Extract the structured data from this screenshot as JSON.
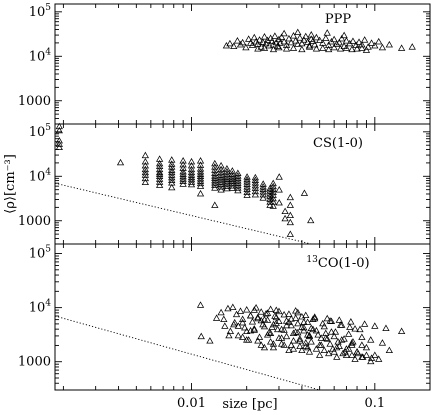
{
  "chart_data": {
    "type": "scatter",
    "xlabel": "size [pc]",
    "ylabel": "⟨ρ⟩[cm⁻³]",
    "x_scale": "log",
    "y_scale": "log",
    "xlim": [
      0.0018,
      0.2
    ],
    "x_tick_labels": [
      {
        "value": 0.01,
        "label": "0.01"
      },
      {
        "value": 0.1,
        "label": "0.1"
      }
    ],
    "marker": "triangle",
    "panels": [
      {
        "label": "PPP",
        "label_sup": "",
        "label_main": "PPP",
        "ylim": [
          300,
          150000
        ],
        "y_tick_labels": [
          {
            "value": 100000,
            "base": "10",
            "exp": "5"
          },
          {
            "value": 10000,
            "base": "10",
            "exp": "4"
          },
          {
            "value": 1000,
            "base": "1000",
            "exp": ""
          }
        ],
        "x": [
          0.0155,
          0.0162,
          0.017,
          0.0178,
          0.0185,
          0.019,
          0.0198,
          0.0205,
          0.021,
          0.0215,
          0.022,
          0.0225,
          0.023,
          0.0235,
          0.024,
          0.0245,
          0.025,
          0.0255,
          0.026,
          0.0265,
          0.027,
          0.0275,
          0.028,
          0.0285,
          0.029,
          0.0295,
          0.03,
          0.0305,
          0.031,
          0.032,
          0.033,
          0.034,
          0.035,
          0.036,
          0.037,
          0.038,
          0.039,
          0.04,
          0.041,
          0.042,
          0.043,
          0.044,
          0.045,
          0.046,
          0.047,
          0.048,
          0.05,
          0.052,
          0.054,
          0.056,
          0.058,
          0.06,
          0.062,
          0.064,
          0.066,
          0.068,
          0.07,
          0.073,
          0.076,
          0.079,
          0.082,
          0.085,
          0.088,
          0.092,
          0.096,
          0.1,
          0.105,
          0.11,
          0.12,
          0.14,
          0.16,
          0.023,
          0.025,
          0.028,
          0.03,
          0.033,
          0.036,
          0.04,
          0.044,
          0.048,
          0.052,
          0.056,
          0.06,
          0.065,
          0.07,
          0.075,
          0.08,
          0.085,
          0.09,
          0.032,
          0.038,
          0.045,
          0.055,
          0.068
        ],
        "y": [
          17000,
          19000,
          16500,
          22000,
          18000,
          20000,
          15500,
          24000,
          19500,
          17500,
          26000,
          21000,
          18500,
          23000,
          16000,
          20500,
          27000,
          19000,
          22500,
          17000,
          25000,
          21500,
          18000,
          28000,
          20000,
          16500,
          23500,
          19500,
          26500,
          21000,
          17500,
          24500,
          20000,
          28500,
          22000,
          18500,
          25500,
          19000,
          23000,
          27500,
          20500,
          17000,
          24000,
          21500,
          18000,
          26000,
          22500,
          19500,
          25000,
          17500,
          21000,
          23500,
          18500,
          20000,
          24500,
          16500,
          22000,
          19000,
          21500,
          17500,
          20500,
          18000,
          23000,
          16000,
          19500,
          17000,
          21000,
          15500,
          18000,
          15000,
          16000,
          14500,
          15000,
          14000,
          15500,
          14500,
          15000,
          14000,
          16000,
          14500,
          15000,
          14000,
          15500,
          14500,
          15000,
          14000,
          14500,
          15000,
          13500,
          32000,
          34000,
          30000,
          33000,
          29000
        ]
      },
      {
        "label": "CS(1-0)",
        "label_sup": "",
        "label_main": "CS(1-0)",
        "ylim": [
          300,
          150000
        ],
        "y_tick_labels": [
          {
            "value": 100000,
            "base": "10",
            "exp": "5"
          },
          {
            "value": 10000,
            "base": "10",
            "exp": "4"
          },
          {
            "value": 1000,
            "base": "1000",
            "exp": ""
          }
        ],
        "fit_line": {
          "x": [
            0.0018,
            0.045
          ],
          "y": [
            7000,
            300
          ]
        },
        "x": [
          0.0019,
          0.0019,
          0.0019,
          0.0019,
          0.0019,
          0.0041,
          0.0056,
          0.0056,
          0.0056,
          0.0056,
          0.0056,
          0.0056,
          0.0056,
          0.0056,
          0.0067,
          0.0067,
          0.0067,
          0.0067,
          0.0067,
          0.0067,
          0.0067,
          0.0067,
          0.0067,
          0.0067,
          0.0078,
          0.0078,
          0.0078,
          0.0078,
          0.0078,
          0.0078,
          0.0078,
          0.0078,
          0.0078,
          0.0078,
          0.009,
          0.009,
          0.009,
          0.009,
          0.009,
          0.009,
          0.009,
          0.009,
          0.009,
          0.01,
          0.01,
          0.01,
          0.01,
          0.01,
          0.01,
          0.01,
          0.01,
          0.01,
          0.0112,
          0.0112,
          0.0112,
          0.0112,
          0.0112,
          0.0112,
          0.0112,
          0.0112,
          0.0112,
          0.0112,
          0.0112,
          0.0134,
          0.0134,
          0.0134,
          0.0134,
          0.0134,
          0.0134,
          0.0134,
          0.0134,
          0.0134,
          0.0134,
          0.0134,
          0.0145,
          0.0145,
          0.0145,
          0.0145,
          0.0145,
          0.0145,
          0.0145,
          0.0145,
          0.0145,
          0.0145,
          0.0156,
          0.0156,
          0.0156,
          0.0156,
          0.0156,
          0.0156,
          0.0156,
          0.0156,
          0.0156,
          0.0167,
          0.0167,
          0.0167,
          0.0167,
          0.0167,
          0.0167,
          0.0167,
          0.0167,
          0.0179,
          0.0179,
          0.0179,
          0.0179,
          0.0179,
          0.0179,
          0.0179,
          0.0179,
          0.0201,
          0.0201,
          0.0201,
          0.0201,
          0.0201,
          0.0201,
          0.0201,
          0.0201,
          0.0223,
          0.0223,
          0.0223,
          0.0223,
          0.0223,
          0.0223,
          0.0223,
          0.0246,
          0.0246,
          0.0246,
          0.0246,
          0.0246,
          0.0246,
          0.0268,
          0.0268,
          0.0268,
          0.0268,
          0.0268,
          0.0268,
          0.0268,
          0.0279,
          0.0279,
          0.0279,
          0.0279,
          0.0279,
          0.0279,
          0.0279,
          0.0279,
          0.0301,
          0.0301,
          0.0301,
          0.0324,
          0.0324,
          0.0346,
          0.0346,
          0.0346,
          0.0346,
          0.0346,
          0.0413,
          0.0447
        ],
        "y": [
          130000,
          105000,
          62000,
          52000,
          44000,
          20000,
          29000,
          21000,
          17000,
          14000,
          12000,
          10500,
          8800,
          7200,
          24000,
          19000,
          16500,
          14000,
          12000,
          11000,
          9800,
          8500,
          7300,
          6200,
          23000,
          18500,
          16000,
          13500,
          12000,
          10500,
          9200,
          8000,
          7000,
          5500,
          22000,
          18000,
          15000,
          12500,
          11000,
          9700,
          8600,
          7600,
          6600,
          21000,
          17000,
          14000,
          12000,
          10500,
          9300,
          8300,
          7300,
          6400,
          22000,
          17500,
          14500,
          12500,
          11000,
          9800,
          8700,
          7700,
          6800,
          5900,
          4000,
          19000,
          16000,
          13500,
          11500,
          10000,
          8900,
          7900,
          7000,
          6200,
          5400,
          2200,
          17000,
          14000,
          12000,
          10500,
          9200,
          8200,
          7300,
          6500,
          5700,
          4900,
          14500,
          12500,
          10800,
          9500,
          8400,
          7500,
          6700,
          5900,
          5200,
          13000,
          11000,
          9600,
          8500,
          7600,
          6800,
          6000,
          5300,
          11500,
          10000,
          8800,
          7800,
          6900,
          6100,
          5400,
          4700,
          9500,
          8300,
          7400,
          6500,
          5700,
          5000,
          4300,
          3700,
          9200,
          8000,
          7000,
          6100,
          5300,
          4500,
          3800,
          6600,
          5700,
          5000,
          4400,
          3800,
          3200,
          5200,
          4600,
          4000,
          3500,
          3000,
          2600,
          2200,
          6800,
          5800,
          5000,
          4300,
          3700,
          3100,
          2600,
          2100,
          9500,
          4900,
          2500,
          1600,
          1100,
          3300,
          2200,
          1300,
          900,
          490,
          4100,
          1000
        ]
      },
      {
        "label": "13CO(1-0)",
        "label_sup": "13",
        "label_main": "CO(1-0)",
        "ylim": [
          300,
          150000
        ],
        "y_tick_labels": [
          {
            "value": 100000,
            "base": "10",
            "exp": "5"
          },
          {
            "value": 10000,
            "base": "10",
            "exp": "4"
          },
          {
            "value": 1000,
            "base": "1000",
            "exp": ""
          }
        ],
        "fit_line": {
          "x": [
            0.0018,
            0.05
          ],
          "y": [
            7000,
            300
          ]
        },
        "x": [
          0.0112,
          0.0113,
          0.0126,
          0.0137,
          0.0145,
          0.0152,
          0.0158,
          0.0163,
          0.0168,
          0.0172,
          0.0176,
          0.018,
          0.0185,
          0.019,
          0.0195,
          0.02,
          0.0205,
          0.021,
          0.0215,
          0.022,
          0.0225,
          0.023,
          0.0235,
          0.024,
          0.0245,
          0.025,
          0.0255,
          0.026,
          0.0265,
          0.027,
          0.0275,
          0.028,
          0.0285,
          0.029,
          0.0295,
          0.03,
          0.031,
          0.032,
          0.033,
          0.034,
          0.035,
          0.036,
          0.037,
          0.038,
          0.039,
          0.04,
          0.041,
          0.042,
          0.043,
          0.044,
          0.045,
          0.047,
          0.049,
          0.051,
          0.053,
          0.055,
          0.057,
          0.059,
          0.061,
          0.063,
          0.066,
          0.069,
          0.072,
          0.075,
          0.078,
          0.081,
          0.085,
          0.09,
          0.095,
          0.1,
          0.11,
          0.12,
          0.015,
          0.017,
          0.019,
          0.021,
          0.023,
          0.025,
          0.027,
          0.029,
          0.031,
          0.033,
          0.035,
          0.037,
          0.039,
          0.041,
          0.043,
          0.045,
          0.048,
          0.051,
          0.054,
          0.057,
          0.06,
          0.064,
          0.068,
          0.072,
          0.076,
          0.08,
          0.085,
          0.09,
          0.018,
          0.02,
          0.022,
          0.024,
          0.026,
          0.028,
          0.03,
          0.032,
          0.034,
          0.036,
          0.038,
          0.04,
          0.042,
          0.044,
          0.046,
          0.05,
          0.054,
          0.058,
          0.062,
          0.066,
          0.07,
          0.075,
          0.08,
          0.016,
          0.02,
          0.024,
          0.028,
          0.032,
          0.036,
          0.04,
          0.044,
          0.05,
          0.056,
          0.062,
          0.07,
          0.078,
          0.086,
          0.095,
          0.105,
          0.021,
          0.025,
          0.029,
          0.033,
          0.037,
          0.041,
          0.046,
          0.052,
          0.058,
          0.065,
          0.073,
          0.083,
          0.019,
          0.023,
          0.027,
          0.031,
          0.035,
          0.039,
          0.043,
          0.048,
          0.053,
          0.06,
          0.067,
          0.075,
          0.085,
          0.096,
          0.022,
          0.026,
          0.03,
          0.034,
          0.038,
          0.042,
          0.047,
          0.055,
          0.064,
          0.074,
          0.088,
          0.1,
          0.115,
          0.14
        ],
        "y": [
          11000,
          2900,
          2400,
          6300,
          8000,
          4500,
          9500,
          3600,
          10000,
          5200,
          7400,
          3000,
          8500,
          6000,
          4200,
          9000,
          2500,
          7000,
          5400,
          3800,
          9800,
          6500,
          2800,
          8200,
          4800,
          1800,
          7600,
          5800,
          3400,
          9200,
          4300,
          2100,
          6900,
          8800,
          3900,
          5500,
          2700,
          7300,
          4600,
          1600,
          6100,
          3300,
          8600,
          5000,
          2400,
          6700,
          3700,
          1900,
          5300,
          2900,
          4100,
          6200,
          3100,
          2000,
          4400,
          2600,
          5600,
          1700,
          3500,
          2300,
          4700,
          1500,
          3200,
          2000,
          4000,
          1400,
          2800,
          1800,
          2500,
          1300,
          2200,
          1600,
          6000,
          4800,
          5200,
          3700,
          6200,
          4400,
          3300,
          5100,
          3900,
          2900,
          4600,
          3500,
          2600,
          4200,
          3100,
          2300,
          3700,
          2700,
          3300,
          2100,
          2900,
          1900,
          2600,
          1700,
          2300,
          1500,
          2000,
          1300,
          4500,
          3600,
          4000,
          5700,
          3100,
          4800,
          2700,
          3800,
          5300,
          2400,
          3400,
          4300,
          2200,
          3000,
          3900,
          2000,
          2700,
          3500,
          1800,
          2500,
          1700,
          2200,
          1500,
          3000,
          2500,
          2000,
          1800,
          2000,
          1700,
          1600,
          1500,
          1300,
          1400,
          1200,
          1300,
          1100,
          1200,
          1000,
          1100,
          7000,
          5900,
          6500,
          5600,
          6300,
          5300,
          6000,
          5000,
          5500,
          4700,
          4300,
          3900,
          2800,
          2400,
          2300,
          2100,
          2000,
          1900,
          1800,
          1700,
          1600,
          1500,
          1400,
          1300,
          1200,
          1150,
          8900,
          7800,
          8400,
          7500,
          8000,
          7100,
          6600,
          6200,
          5800,
          5400,
          4900,
          4500,
          4100,
          3600
        ]
      }
    ]
  }
}
